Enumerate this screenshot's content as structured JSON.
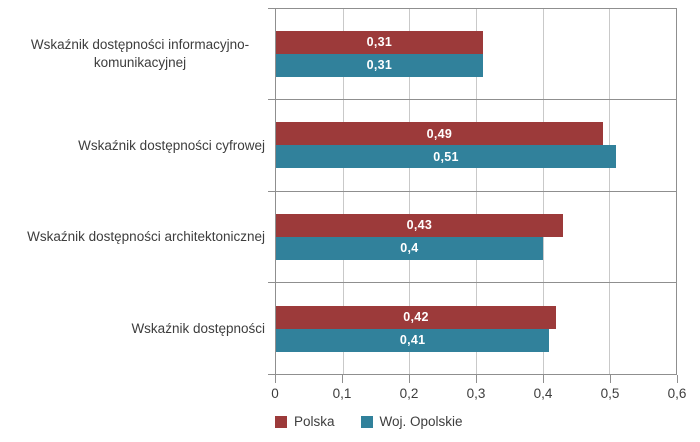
{
  "chart_data": {
    "type": "bar",
    "orientation": "horizontal",
    "title": "",
    "xlabel": "",
    "ylabel": "",
    "categories": [
      "Wskaźnik dostępności informacyjno-komunikacyjnej",
      "Wskaźnik dostępności cyfrowej",
      "Wskaźnik dostępności architektonicznej",
      "Wskaźnik dostępności"
    ],
    "series": [
      {
        "name": "Polska",
        "color": "#9c3a3a",
        "values": [
          0.31,
          0.49,
          0.43,
          0.42
        ],
        "labels": [
          "0,31",
          "0,49",
          "0,43",
          "0,42"
        ]
      },
      {
        "name": "Woj. Opolskie",
        "color": "#31819b",
        "values": [
          0.31,
          0.51,
          0.4,
          0.41
        ],
        "labels": [
          "0,31",
          "0,51",
          "0,4",
          "0,41"
        ]
      }
    ],
    "xlim": [
      0,
      0.6
    ],
    "x_ticks": [
      0,
      0.1,
      0.2,
      0.3,
      0.4,
      0.5,
      0.6
    ],
    "x_tick_labels": [
      "0",
      "0,1",
      "0,2",
      "0,3",
      "0,4",
      "0,5",
      "0,6"
    ],
    "grid": "vertical-gridlines-on",
    "legend_position": "bottom-left"
  },
  "colors": {
    "background": "#ffffff",
    "plot_border": "#8f8f8f",
    "gridline": "#c9c9c9",
    "axis_text": "#3d3d3d",
    "value_text": "#ffffff"
  }
}
